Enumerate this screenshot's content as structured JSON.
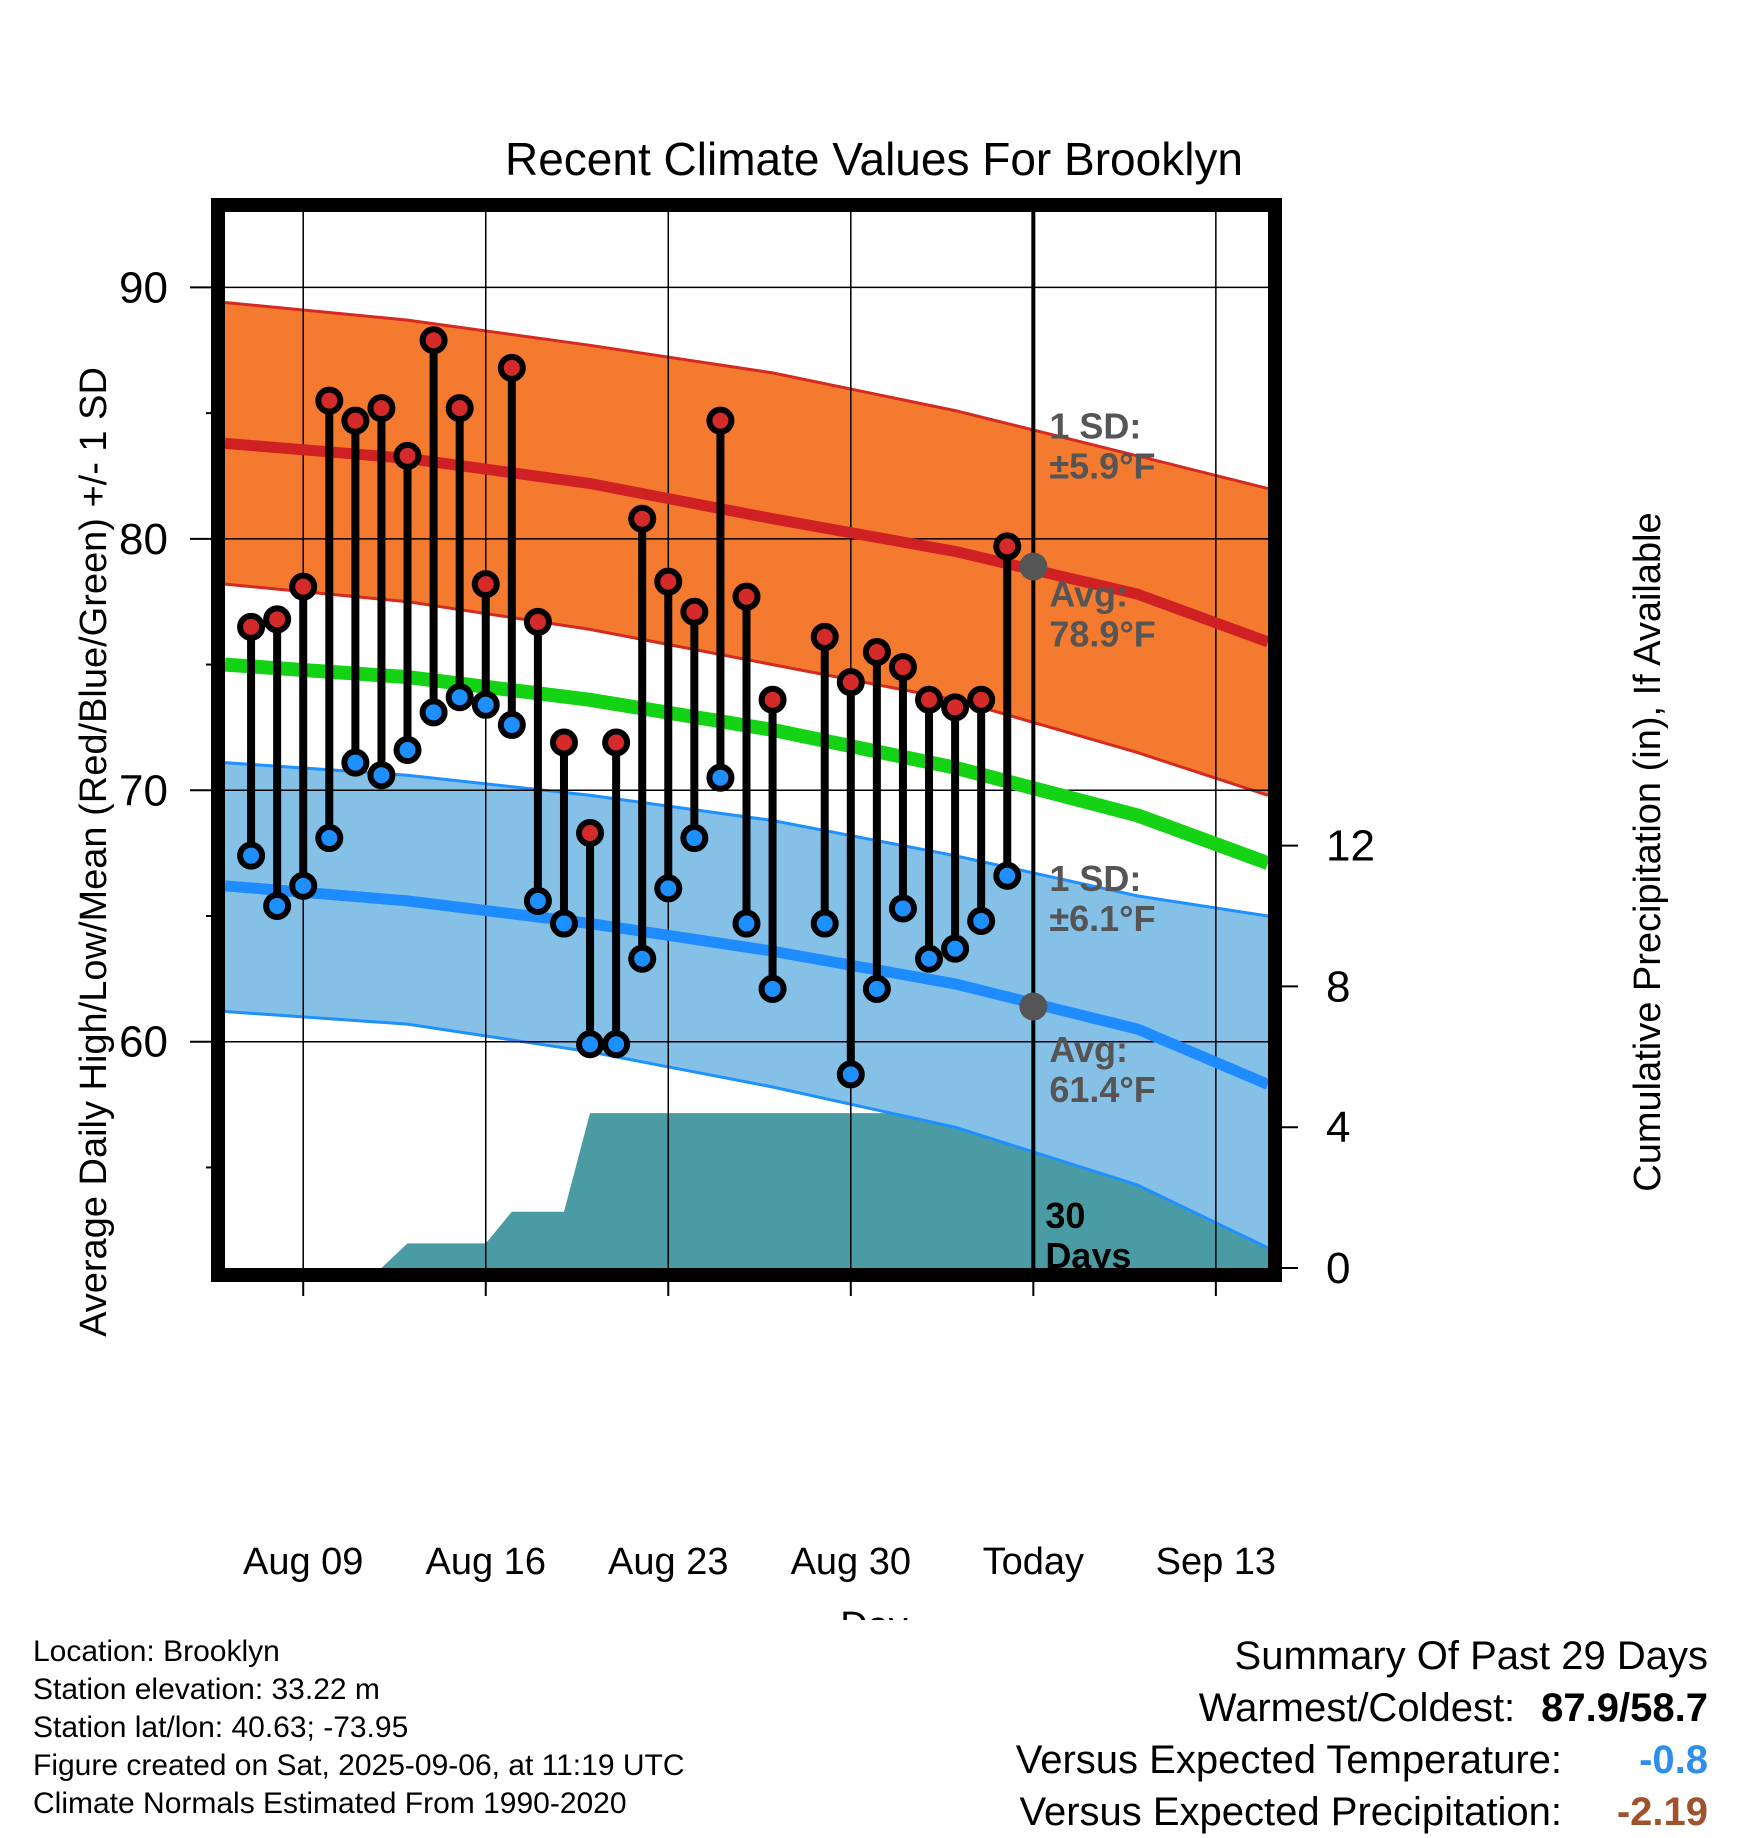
{
  "chart_data": {
    "type": "line",
    "title": "Recent Climate Values For Brooklyn",
    "xlabel": "Day",
    "ylabel": "Average Daily High/Low/Mean (Red/Blue/Green) +/- 1 SD",
    "ylabel_right": "Cumulative Precipitation (in), If Available",
    "x_axis": {
      "type": "date",
      "range": [
        "2025-08-06",
        "2025-09-15"
      ]
    },
    "x_ticks": [
      {
        "date": "2025-08-09",
        "label": "Aug 09"
      },
      {
        "date": "2025-08-16",
        "label": "Aug 16"
      },
      {
        "date": "2025-08-23",
        "label": "Aug 23"
      },
      {
        "date": "2025-08-30",
        "label": "Aug 30"
      },
      {
        "date": "2025-09-06",
        "label": "Today"
      },
      {
        "date": "2025-09-13",
        "label": "Sep 13"
      }
    ],
    "ylim": [
      51,
      93
    ],
    "y_ticks": [
      60,
      70,
      80,
      90
    ],
    "y_minor_ticks": [
      55,
      65,
      75,
      85
    ],
    "y2lim": [
      0,
      30
    ],
    "y2_ticks": [
      0,
      4,
      8,
      12
    ],
    "grid": true,
    "today": "2025-09-06",
    "observed": {
      "dates": [
        "2025-08-07",
        "2025-08-08",
        "2025-08-09",
        "2025-08-10",
        "2025-08-11",
        "2025-08-12",
        "2025-08-13",
        "2025-08-14",
        "2025-08-15",
        "2025-08-16",
        "2025-08-17",
        "2025-08-18",
        "2025-08-19",
        "2025-08-20",
        "2025-08-21",
        "2025-08-22",
        "2025-08-23",
        "2025-08-24",
        "2025-08-25",
        "2025-08-26",
        "2025-08-27",
        "2025-08-29",
        "2025-08-30",
        "2025-08-31",
        "2025-09-01",
        "2025-09-02",
        "2025-09-03",
        "2025-09-04",
        "2025-09-05"
      ],
      "high": [
        76.5,
        76.8,
        78.1,
        85.5,
        84.7,
        85.2,
        83.3,
        87.9,
        85.2,
        78.2,
        86.8,
        76.7,
        71.9,
        68.3,
        71.9,
        80.8,
        78.3,
        77.1,
        84.7,
        77.7,
        73.6,
        76.1,
        74.3,
        75.5,
        74.9,
        73.6,
        73.3,
        73.6,
        79.7
      ],
      "low": [
        67.4,
        65.4,
        66.2,
        68.1,
        71.1,
        70.6,
        71.6,
        73.1,
        73.7,
        73.4,
        72.6,
        65.6,
        64.7,
        59.9,
        59.9,
        63.3,
        66.1,
        68.1,
        70.5,
        64.7,
        62.1,
        64.7,
        58.7,
        62.1,
        65.3,
        63.3,
        63.7,
        64.8,
        66.6
      ]
    },
    "normals": {
      "dates": [
        "2025-08-06",
        "2025-08-13",
        "2025-08-20",
        "2025-08-27",
        "2025-09-03",
        "2025-09-10",
        "2025-09-15"
      ],
      "high_avg": [
        83.8,
        83.2,
        82.2,
        80.8,
        79.5,
        77.8,
        75.9
      ],
      "high_plus_sd": [
        89.4,
        88.7,
        87.7,
        86.6,
        85.1,
        83.3,
        82.0
      ],
      "high_minus_sd": [
        78.2,
        77.5,
        76.4,
        75.0,
        73.6,
        71.5,
        69.8
      ],
      "mean_avg": [
        75.0,
        74.5,
        73.6,
        72.4,
        70.9,
        69.0,
        67.1
      ],
      "low_avg": [
        66.2,
        65.6,
        64.7,
        63.6,
        62.3,
        60.5,
        58.3
      ],
      "low_plus_sd": [
        71.1,
        70.6,
        69.8,
        68.8,
        67.4,
        65.8,
        65.0
      ],
      "low_minus_sd": [
        61.2,
        60.7,
        59.6,
        58.2,
        56.6,
        54.3,
        51.8
      ]
    },
    "today_values": {
      "high_avg": 78.9,
      "low_avg": 61.4
    },
    "precipitation": {
      "dates": [
        "2025-08-12",
        "2025-08-13",
        "2025-08-16",
        "2025-08-17",
        "2025-08-19",
        "2025-08-20",
        "2025-09-03",
        "2025-09-04",
        "2025-09-15"
      ],
      "cumulative": [
        0.0,
        0.7,
        0.7,
        1.6,
        1.6,
        4.4,
        4.4,
        5.0,
        5.0
      ]
    },
    "annotations": [
      {
        "id": "high_sd",
        "lines": [
          "1 SD:",
          "±5.9°F"
        ]
      },
      {
        "id": "high_avg",
        "lines": [
          "Avg:",
          "78.9°F"
        ]
      },
      {
        "id": "low_sd",
        "lines": [
          "1 SD:",
          "±6.1°F"
        ]
      },
      {
        "id": "low_avg",
        "lines": [
          "Avg:",
          "61.4°F"
        ]
      },
      {
        "id": "days",
        "lines": [
          "30",
          "Days"
        ]
      }
    ],
    "colors": {
      "high_band": "#f47a30",
      "high_band_edge": "#d42a20",
      "high_line": "#cf2024",
      "low_band": "#85c1e6",
      "low_band_edge": "#1e90ff",
      "low_line": "#1e8bff",
      "mean_line": "#14d214",
      "precip": "#4a9ba3",
      "high_dot": "#d42a2a",
      "low_dot": "#1e8fff",
      "today_dot": "#555555",
      "annotation": "#555555"
    }
  },
  "info": {
    "location": "Location: Brooklyn",
    "elevation": "Station elevation: 33.22 m",
    "latlon": "Station lat/lon: 40.63; -73.95",
    "created": "Figure created on Sat, 2025-09-06, at 11:19 UTC",
    "normals": "Climate Normals Estimated From 1990-2020"
  },
  "summary": {
    "title": "Summary Of Past 29 Days",
    "warm_label": "Warmest/Coldest:",
    "warm_value": "87.9/58.7",
    "temp_label": "Versus Expected Temperature:",
    "temp_value": "-0.8",
    "temp_color": "#2f8fe8",
    "precip_label": "Versus Expected Precipitation:",
    "precip_value": "-2.19",
    "precip_color": "#a0522d"
  }
}
